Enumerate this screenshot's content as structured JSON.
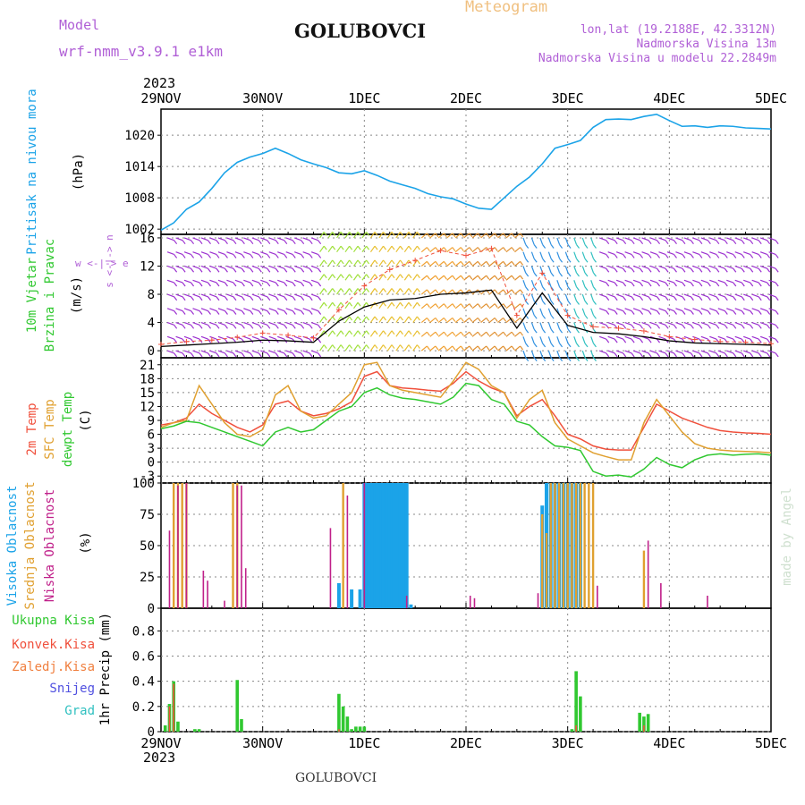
{
  "header": {
    "model_label": "Model",
    "model_name": "wrf-nmm_v3.9.1 e1km",
    "title": "GOLUBOVCI",
    "product": "Meteogram",
    "lonlat": "lon,lat (19.2188E, 42.3312N)",
    "elevation": "Nadmorska Visina 13m",
    "model_elevation": "Nadmorska Visina u modelu 22.2849m",
    "year_top": "2023",
    "year_bottom": "2023",
    "footer_name": "GOLUBOVCI",
    "watermark": "made by Angel"
  },
  "colors": {
    "pressure": "#1ba3e8",
    "temp2m": "#f0503c",
    "sfc": "#e0a030",
    "dewpt": "#30c830",
    "high_cloud": "#1ba3e8",
    "mid_cloud": "#e0a030",
    "low_cloud": "#c0208a",
    "total_precip": "#30c830",
    "conv_precip": "#f0503c",
    "violet": "#b05fd6",
    "grid": "#888888"
  },
  "chart_data": [
    {
      "type": "line",
      "panel": "pressure",
      "ylabel_left": "Pritisak na nivou mora",
      "unit": "(hPa)",
      "x_ticks": [
        "29NOV",
        "30NOV",
        "1DEC",
        "2DEC",
        "3DEC",
        "4DEC",
        "5DEC"
      ],
      "ylim": [
        1001,
        1025
      ],
      "y_ticks": [
        1002,
        1008,
        1014,
        1020
      ],
      "x_hours": [
        0,
        3,
        6,
        9,
        12,
        15,
        18,
        21,
        24,
        27,
        30,
        33,
        36,
        39,
        42,
        45,
        48,
        51,
        54,
        57,
        60,
        63,
        66,
        69,
        72,
        75,
        78,
        81,
        84,
        87,
        90,
        93,
        96,
        99,
        102,
        105,
        108,
        111,
        114,
        117,
        120,
        123,
        126,
        129,
        132,
        135,
        138,
        141,
        144
      ],
      "series": [
        {
          "values": [
            1001.8,
            1003.2,
            1005.8,
            1007.2,
            1009.8,
            1012.8,
            1014.8,
            1015.8,
            1016.5,
            1017.5,
            1016.5,
            1015.3,
            1014.5,
            1013.8,
            1012.8,
            1012.6,
            1013.2,
            1012.3,
            1011.2,
            1010.5,
            1009.8,
            1008.8,
            1008.2,
            1007.8,
            1006.8,
            1006.0,
            1005.8,
            1008.0,
            1010.2,
            1012.0,
            1014.5,
            1017.5,
            1018.2,
            1019.0,
            1021.5,
            1023.0,
            1023.1,
            1023.0,
            1023.6,
            1024.0,
            1022.8,
            1021.7,
            1021.8,
            1021.5,
            1021.8,
            1021.7,
            1021.4,
            1021.3,
            1021.2
          ]
        }
      ]
    },
    {
      "type": "barbs",
      "panel": "wind",
      "ylabel_left_1": "10m Vjetar",
      "ylabel_left_2": "Brzina i Pravac",
      "unit": "(m/s)",
      "compass": "w <-|-> e",
      "compass_v": "s <-|-> n",
      "ylim": [
        -1,
        16.5
      ],
      "y_ticks": [
        0,
        4,
        8,
        12,
        16
      ],
      "x_hours": [
        0,
        6,
        12,
        18,
        24,
        30,
        36,
        42,
        48,
        54,
        60,
        66,
        72,
        78,
        84,
        90,
        96,
        102,
        108,
        114,
        120,
        126,
        132,
        138,
        144
      ],
      "series": [
        {
          "name": "speed_black",
          "values": [
            0.6,
            0.8,
            1.0,
            1.2,
            1.5,
            1.4,
            1.2,
            4.2,
            6.2,
            7.2,
            7.4,
            8.0,
            8.2,
            8.6,
            3.2,
            8.2,
            3.6,
            2.6,
            2.4,
            2.0,
            1.4,
            1.1,
            1.0,
            0.9,
            0.8
          ]
        },
        {
          "name": "gust_red",
          "values": [
            0.9,
            1.3,
            1.5,
            1.9,
            2.5,
            2.2,
            1.8,
            5.8,
            9.2,
            11.5,
            12.8,
            14.2,
            13.5,
            14.5,
            5.0,
            11.0,
            5.0,
            3.4,
            3.2,
            2.8,
            2.0,
            1.6,
            1.3,
            1.2,
            1.0
          ]
        }
      ]
    },
    {
      "type": "line",
      "panel": "temperature",
      "ylabel_left_1": "2m Temp",
      "ylabel_left_2": "SFC Temp",
      "ylabel_left_3": "dewpt Temp",
      "unit": "(C)",
      "ylim": [
        -4.5,
        22.5
      ],
      "y_ticks": [
        -3,
        0,
        3,
        6,
        9,
        12,
        15,
        18,
        21
      ],
      "x_hours": [
        0,
        3,
        6,
        9,
        12,
        15,
        18,
        21,
        24,
        27,
        30,
        33,
        36,
        39,
        42,
        45,
        48,
        51,
        54,
        57,
        60,
        63,
        66,
        69,
        72,
        75,
        78,
        81,
        84,
        87,
        90,
        93,
        96,
        99,
        102,
        105,
        108,
        111,
        114,
        117,
        120,
        123,
        126,
        129,
        132,
        135,
        138,
        141,
        144
      ],
      "series": [
        {
          "name": "2m Temp",
          "values": [
            8,
            8.5,
            9.5,
            12.5,
            10.5,
            9,
            7.5,
            6.5,
            8,
            12.5,
            13.2,
            11,
            10,
            10.5,
            11.5,
            13,
            18.5,
            19.5,
            16.5,
            16,
            15.8,
            15.5,
            15.3,
            17,
            19.5,
            17.5,
            16,
            15,
            10,
            12,
            13.5,
            10,
            6,
            5,
            3.5,
            2.8,
            2.6,
            2.6,
            7.5,
            12.5,
            11,
            9.5,
            8.5,
            7.5,
            6.8,
            6.5,
            6.3,
            6.2,
            6.0
          ]
        },
        {
          "name": "SFC Temp",
          "values": [
            7.5,
            8.5,
            9,
            16.5,
            12.5,
            8.5,
            6,
            5.5,
            7,
            14.5,
            16.5,
            11,
            9.5,
            10,
            12.5,
            15,
            21,
            21.5,
            16.5,
            15.5,
            15,
            14.5,
            14,
            17.5,
            21.5,
            20,
            16.5,
            15,
            9.5,
            13.5,
            15.5,
            8.5,
            5,
            3.5,
            2,
            1.2,
            0.5,
            0.5,
            8.5,
            13.5,
            10,
            6.5,
            4,
            3,
            2.6,
            2.4,
            2.3,
            2.2,
            2.0
          ]
        },
        {
          "name": "dewpt Temp",
          "values": [
            7.2,
            7.8,
            8.8,
            8.5,
            7.5,
            6.5,
            5.5,
            4.5,
            3.5,
            6.5,
            7.5,
            6.5,
            7,
            9,
            11,
            12,
            15,
            16,
            14.5,
            13.8,
            13.5,
            13,
            12.5,
            14,
            17,
            16.5,
            13.5,
            12.5,
            8.8,
            8.0,
            5.5,
            3.5,
            3.2,
            2.5,
            -2,
            -3,
            -2.8,
            -3.2,
            -1.5,
            1,
            -0.5,
            -1.2,
            0.5,
            1.5,
            1.8,
            1.5,
            1.7,
            1.8,
            1.5
          ]
        }
      ]
    },
    {
      "type": "bar",
      "panel": "cloud",
      "ylabel_left_1": "Visoka Oblacnost",
      "ylabel_left_2": "Srednja Oblacnost",
      "ylabel_left_3": "Niska Oblacnost",
      "unit": "(%)",
      "ylim": [
        0,
        100
      ],
      "y_ticks": [
        0,
        25,
        50,
        75,
        100
      ],
      "series": [
        {
          "name": "Visoka Oblacnost",
          "points": [
            [
              42,
              20
            ],
            [
              45,
              15
            ],
            [
              47,
              15
            ],
            [
              48,
              100
            ],
            [
              48.5,
              100
            ],
            [
              49,
              100
            ],
            [
              49.5,
              100
            ],
            [
              50,
              100
            ],
            [
              50.5,
              100
            ],
            [
              51,
              100
            ],
            [
              51.5,
              100
            ],
            [
              52,
              100
            ],
            [
              52.5,
              100
            ],
            [
              53,
              100
            ],
            [
              53.5,
              100
            ],
            [
              54,
              100
            ],
            [
              54.5,
              100
            ],
            [
              55,
              100
            ],
            [
              55.5,
              100
            ],
            [
              56,
              100
            ],
            [
              56.5,
              100
            ],
            [
              57,
              100
            ],
            [
              57.5,
              100
            ],
            [
              58,
              100
            ],
            [
              59,
              3
            ],
            [
              90,
              82
            ],
            [
              91,
              100
            ],
            [
              92,
              100
            ],
            [
              93,
              100
            ],
            [
              94,
              100
            ],
            [
              95,
              100
            ],
            [
              96,
              100
            ],
            [
              97,
              100
            ],
            [
              98,
              100
            ],
            [
              99,
              100
            ]
          ]
        },
        {
          "name": "Srednja Oblacnost",
          "points": [
            [
              3,
              100
            ],
            [
              4,
              100
            ],
            [
              5,
              100
            ],
            [
              6,
              100
            ],
            [
              17,
              100
            ],
            [
              18,
              100
            ],
            [
              43,
              100
            ],
            [
              90,
              75
            ],
            [
              91,
              60
            ],
            [
              92,
              100
            ],
            [
              93,
              100
            ],
            [
              94,
              100
            ],
            [
              95,
              100
            ],
            [
              96,
              100
            ],
            [
              97,
              100
            ],
            [
              98,
              100
            ],
            [
              99,
              100
            ],
            [
              100,
              100
            ],
            [
              101,
              100
            ],
            [
              102,
              100
            ],
            [
              114,
              46
            ]
          ]
        },
        {
          "name": "Niska Oblacnost",
          "points": [
            [
              2,
              62
            ],
            [
              4,
              98
            ],
            [
              6,
              100
            ],
            [
              10,
              30
            ],
            [
              11,
              22
            ],
            [
              15,
              6
            ],
            [
              18,
              98
            ],
            [
              19,
              98
            ],
            [
              20,
              32
            ],
            [
              40,
              64
            ],
            [
              44,
              90
            ],
            [
              48,
              100
            ],
            [
              58,
              10
            ],
            [
              73,
              10
            ],
            [
              74,
              8
            ],
            [
              89,
              12
            ],
            [
              103,
              18
            ],
            [
              115,
              54
            ],
            [
              118,
              20
            ],
            [
              129,
              10
            ]
          ]
        }
      ]
    },
    {
      "type": "bar",
      "panel": "precip",
      "ylabel_left_1": "Ukupna Kisa",
      "ylabel_left_2": "Konvek.Kisa",
      "ylabel_left_3": "Zaledj.Kisa",
      "ylabel_left_4": "Snijeg",
      "ylabel_left_5": "Grad",
      "unit": "1hr Precip (mm)",
      "ylim": [
        0,
        0.98
      ],
      "y_ticks": [
        0,
        0.2,
        0.4,
        0.6,
        0.8
      ],
      "x_ticks": [
        "29NOV",
        "30NOV",
        "1DEC",
        "2DEC",
        "3DEC",
        "4DEC",
        "5DEC"
      ],
      "series": [
        {
          "name": "Ukupna Kisa",
          "points": [
            [
              1,
              0.05
            ],
            [
              2,
              0.22
            ],
            [
              3,
              0.4
            ],
            [
              4,
              0.08
            ],
            [
              8,
              0.02
            ],
            [
              9,
              0.02
            ],
            [
              18,
              0.41
            ],
            [
              19,
              0.1
            ],
            [
              42,
              0.3
            ],
            [
              43,
              0.2
            ],
            [
              44,
              0.12
            ],
            [
              45,
              0.02
            ],
            [
              46,
              0.04
            ],
            [
              47,
              0.04
            ],
            [
              48,
              0.04
            ],
            [
              97,
              0.02
            ],
            [
              98,
              0.48
            ],
            [
              99,
              0.28
            ],
            [
              113,
              0.15
            ],
            [
              114,
              0.12
            ],
            [
              115,
              0.14
            ]
          ]
        },
        {
          "name": "Konvek.Kisa",
          "points": [
            [
              2,
              0.2
            ],
            [
              3,
              0.38
            ],
            [
              42,
              0.02
            ],
            [
              98,
              0.05
            ],
            [
              114,
              0.05
            ]
          ]
        }
      ]
    }
  ]
}
